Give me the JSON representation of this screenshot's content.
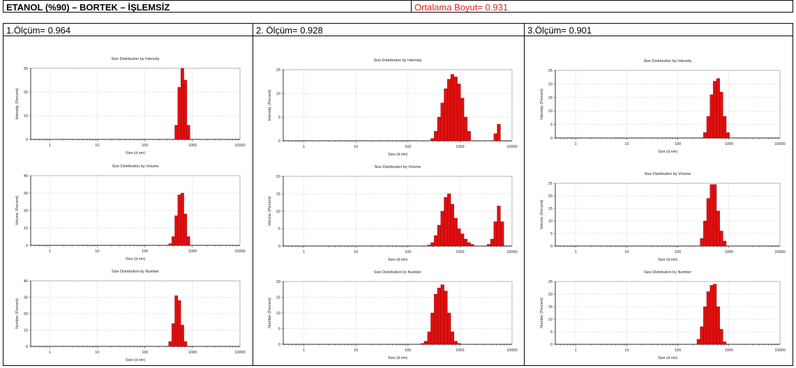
{
  "header": {
    "title": "ETANOL (%90) – BORTEK – İŞLEMSİZ",
    "average": "Ortalama Boyut= 0.931"
  },
  "columns": [
    {
      "label": "1.Ölçüm= 0.964"
    },
    {
      "label": "2. Ölçüm= 0.928"
    },
    {
      "label": "3.Ölçüm= 0.901"
    }
  ],
  "chart_data": [
    {
      "type": "bar",
      "title": "Size Distribution by Intensity",
      "ylabel": "Intensity (Percent)",
      "xlabel": "Size (d.nm)",
      "xscale": "log",
      "xlim": [
        0.4,
        10000
      ],
      "ylim": [
        0,
        30
      ],
      "yticks": [
        0,
        10,
        20,
        30
      ],
      "xticks": [
        1,
        10,
        100,
        1000,
        10000
      ],
      "x": [
        459,
        531,
        615,
        712,
        825
      ],
      "values": [
        6,
        22,
        30,
        25,
        6
      ]
    },
    {
      "type": "bar",
      "title": "Size Distribution by Volume",
      "ylabel": "Volume (Percent)",
      "xlabel": "Size (d.nm)",
      "xscale": "log",
      "xlim": [
        0.4,
        10000
      ],
      "ylim": [
        0,
        40
      ],
      "yticks": [
        0,
        10,
        20,
        30,
        40
      ],
      "xticks": [
        1,
        10,
        100,
        1000,
        10000
      ],
      "x": [
        342,
        396,
        459,
        531,
        615,
        712,
        825
      ],
      "values": [
        1,
        5,
        17,
        29,
        30,
        18,
        5
      ]
    },
    {
      "type": "bar",
      "title": "Size Distribution by Number",
      "ylabel": "Number (Percent)",
      "xlabel": "Size (d.nm)",
      "xscale": "log",
      "xlim": [
        0.4,
        10000
      ],
      "ylim": [
        0,
        40
      ],
      "yticks": [
        0,
        10,
        20,
        30,
        40
      ],
      "xticks": [
        1,
        10,
        100,
        1000,
        10000
      ],
      "x": [
        342,
        396,
        459,
        531,
        615,
        712
      ],
      "values": [
        3,
        14,
        31,
        28,
        13,
        3
      ]
    },
    {
      "type": "bar",
      "title": "Size Distribution by Intensity",
      "ylabel": "Intensity (Percent)",
      "xlabel": "Size (d.nm)",
      "xscale": "log",
      "xlim": [
        0.4,
        10000
      ],
      "ylim": [
        0,
        15
      ],
      "yticks": [
        0,
        5,
        10,
        15
      ],
      "xticks": [
        1,
        10,
        100,
        1000,
        10000
      ],
      "x": [
        295,
        342,
        396,
        459,
        531,
        615,
        712,
        825,
        955,
        1106,
        1281,
        1484,
        4801,
        5560
      ],
      "values": [
        0.5,
        2,
        5,
        8,
        11,
        13,
        14,
        13.5,
        12,
        9,
        5,
        2,
        1.5,
        3.5
      ]
    },
    {
      "type": "bar",
      "title": "Size Distribution by Volume",
      "ylabel": "Volume (Percent)",
      "xlabel": "Size (d.nm)",
      "xscale": "log",
      "xlim": [
        0.4,
        10000
      ],
      "ylim": [
        0,
        20
      ],
      "yticks": [
        0,
        5,
        10,
        15,
        20
      ],
      "xticks": [
        1,
        10,
        100,
        1000,
        10000
      ],
      "x": [
        255,
        295,
        342,
        396,
        459,
        531,
        615,
        712,
        825,
        955,
        1106,
        1281,
        1484,
        1718,
        3580,
        4145,
        4801,
        5560,
        6439
      ],
      "values": [
        0.3,
        1,
        3,
        6,
        10,
        14,
        15,
        12,
        8,
        5,
        3.5,
        2,
        1,
        0.5,
        0.5,
        2,
        7,
        11.5,
        7
      ]
    },
    {
      "type": "bar",
      "title": "Size Distribution by Number",
      "ylabel": "Number (Percent)",
      "xlabel": "Size (d.nm)",
      "xscale": "log",
      "xlim": [
        0.4,
        10000
      ],
      "ylim": [
        0,
        20
      ],
      "yticks": [
        0,
        5,
        10,
        15,
        20
      ],
      "xticks": [
        1,
        10,
        100,
        1000,
        10000
      ],
      "x": [
        190,
        220,
        255,
        295,
        342,
        396,
        459,
        531,
        615,
        712,
        825,
        955
      ],
      "values": [
        0.3,
        1,
        4,
        10,
        16,
        18,
        19,
        17,
        10,
        4,
        1,
        0.3
      ]
    },
    {
      "type": "bar",
      "title": "Size Distribution by Intensity",
      "ylabel": "Intensity (Percent)",
      "xlabel": "Size (d.nm)",
      "xscale": "log",
      "xlim": [
        0.4,
        10000
      ],
      "ylim": [
        0,
        25
      ],
      "yticks": [
        0,
        5,
        10,
        15,
        20,
        25
      ],
      "xticks": [
        1,
        10,
        100,
        1000,
        10000
      ],
      "x": [
        342,
        396,
        459,
        531,
        615,
        712,
        825,
        955
      ],
      "values": [
        2,
        8,
        16,
        21,
        22,
        17,
        8,
        2
      ]
    },
    {
      "type": "bar",
      "title": "Size Distribution by Volume",
      "ylabel": "Volume (Percent)",
      "xlabel": "Size (d.nm)",
      "xscale": "log",
      "xlim": [
        0.4,
        10000
      ],
      "ylim": [
        0,
        25
      ],
      "yticks": [
        0,
        5,
        10,
        15,
        20,
        25
      ],
      "xticks": [
        1,
        10,
        100,
        1000,
        10000
      ],
      "x": [
        295,
        342,
        396,
        459,
        531,
        615,
        712,
        825
      ],
      "values": [
        3,
        10,
        19,
        24.5,
        24.5,
        14,
        6,
        2
      ]
    },
    {
      "type": "bar",
      "title": "Size Distribution by Number",
      "ylabel": "Number (Percent)",
      "xlabel": "Size (d.nm)",
      "xscale": "log",
      "xlim": [
        0.4,
        10000
      ],
      "ylim": [
        0,
        25
      ],
      "yticks": [
        0,
        5,
        10,
        15,
        20,
        25
      ],
      "xticks": [
        1,
        10,
        100,
        1000,
        10000
      ],
      "x": [
        255,
        295,
        342,
        396,
        459,
        531,
        615,
        712,
        825
      ],
      "values": [
        2,
        7,
        15,
        21,
        23.5,
        24,
        15,
        6,
        1
      ]
    }
  ]
}
